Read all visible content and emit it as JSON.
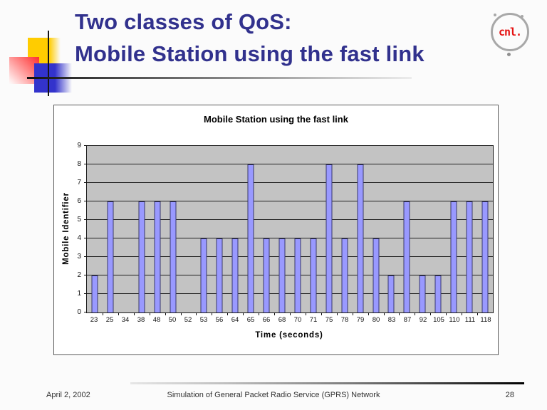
{
  "slide_title": {
    "line1": "Two classes of QoS:",
    "line2": "Mobile Station using the fast link"
  },
  "logo": {
    "text": "cnl."
  },
  "footer": {
    "date": "April 2, 2002",
    "title": "Simulation of General Packet Radio Service (GPRS) Network",
    "page_number": "28"
  },
  "colors": {
    "title_text": "#31318d",
    "plot_background": "#c3c3c3",
    "bar_fill": "#9999ff",
    "bar_border": "#38386b",
    "accent_yellow": "#ffcc00",
    "accent_blue": "#3333cc",
    "accent_red": "#ff2e2e",
    "logo_red": "#e51010"
  },
  "chart_data": {
    "type": "bar",
    "title": "Mobile Station using the fast link",
    "xlabel": "Time (seconds)",
    "ylabel": "Mobile Identifier",
    "categories": [
      "23",
      "25",
      "34",
      "38",
      "48",
      "50",
      "52",
      "53",
      "56",
      "64",
      "65",
      "66",
      "68",
      "70",
      "71",
      "75",
      "78",
      "79",
      "80",
      "83",
      "87",
      "92",
      "105",
      "110",
      "111",
      "118"
    ],
    "values": [
      2,
      6,
      0,
      6,
      6,
      6,
      0,
      4,
      4,
      4,
      8,
      4,
      4,
      4,
      4,
      8,
      4,
      8,
      4,
      2,
      6,
      2,
      2,
      6,
      6,
      6
    ],
    "ylim": [
      0,
      9
    ],
    "yticks": [
      0,
      1,
      2,
      3,
      4,
      5,
      6,
      7,
      8,
      9
    ],
    "grid": true,
    "legend_position": "none"
  }
}
